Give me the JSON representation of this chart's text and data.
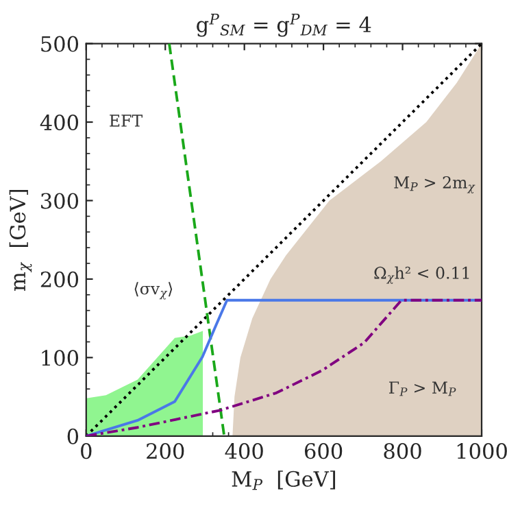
{
  "chart_data": {
    "type": "line",
    "title": "g$^{P}$$_{SM}$ = g$^{P}$$_{DM}$ = 4",
    "xlabel": "M$_{P}$  [GeV]",
    "ylabel": "m$_{χ}$  [GeV]",
    "xlim": [
      0,
      1000
    ],
    "ylim": [
      0,
      500
    ],
    "xticks": [
      0,
      200,
      400,
      600,
      800,
      1000
    ],
    "yticks": [
      0,
      100,
      200,
      300,
      400,
      500
    ],
    "grid": false,
    "legend": false,
    "series": [
      {
        "type": "area",
        "color": "#dfd1c2",
        "x": [
          370,
          375,
          390,
          420,
          466,
          505,
          615,
          745,
          860,
          937,
          1000
        ],
        "values": [
          0,
          50,
          100,
          150,
          200,
          230,
          300,
          350,
          400,
          450,
          500
        ]
      },
      {
        "type": "area",
        "color": "#90f590",
        "x": [
          0,
          50,
          130,
          224,
          264,
          295
        ],
        "values": [
          48,
          52,
          72,
          125,
          128,
          134
        ]
      },
      {
        "color": "#000000",
        "line_style": "dotted",
        "x": [
          0,
          1000
        ],
        "values": [
          0,
          500
        ]
      },
      {
        "color": "#1aa81a",
        "line_style": "dashed",
        "x": [
          210,
          349
        ],
        "values": [
          500,
          0
        ]
      },
      {
        "color": "#4a78e8",
        "line_style": "solid",
        "x": [
          0,
          130,
          224,
          294,
          329,
          356,
          1000
        ],
        "values": [
          0,
          20,
          44,
          101,
          142,
          173,
          173
        ]
      },
      {
        "color": "#800080",
        "line_style": "dashdot",
        "x": [
          0,
          130,
          340,
          481,
          598,
          703,
          797,
          1000
        ],
        "values": [
          0,
          11,
          33,
          55,
          84,
          119,
          173,
          173
        ]
      }
    ],
    "annotations": [
      "EFT",
      "⟨σv$_{χ}$⟩",
      "M$_{P}$ > 2m$_{χ}$",
      "Ω$_{χ}$h² < 0.11",
      "Γ$_{P}$ > M$_{P}$"
    ]
  }
}
